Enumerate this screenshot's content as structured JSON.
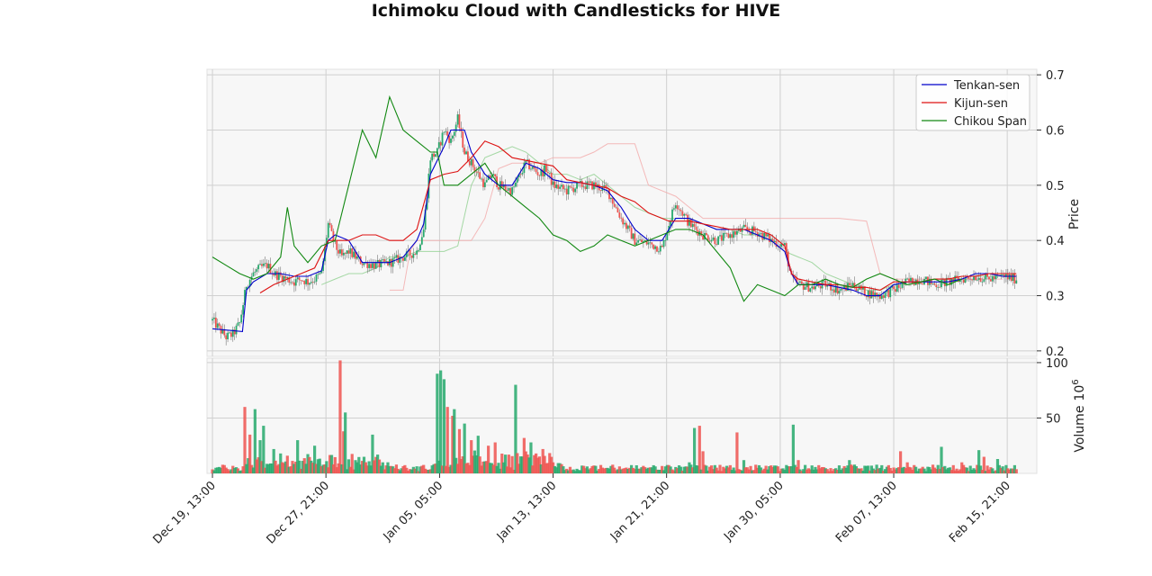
{
  "chart_data": {
    "type": "candlestick",
    "title": "Ichimoku Cloud with Candlesticks for HIVE",
    "price_axis": {
      "label": "Price",
      "ylim": [
        0.19,
        0.71
      ],
      "ticks": [
        "0.2",
        "0.3",
        "0.4",
        "0.5",
        "0.6",
        "0.7"
      ],
      "side": "right"
    },
    "volume_axis": {
      "label": "Volume",
      "multiplier_base": "10",
      "multiplier_exp": "6",
      "ylim": [
        0,
        104
      ],
      "ticks": [
        "50",
        "100"
      ],
      "side": "right"
    },
    "x_axis": {
      "range_days": [
        -0.4,
        60.5
      ],
      "ticks": [
        {
          "label": "Dec 19, 13:00",
          "day": 0
        },
        {
          "label": "Dec 27, 21:00",
          "day": 8.33
        },
        {
          "label": "Jan 05, 05:00",
          "day": 16.67
        },
        {
          "label": "Jan 13, 13:00",
          "day": 25
        },
        {
          "label": "Jan 21, 21:00",
          "day": 33.33
        },
        {
          "label": "Jan 30, 05:00",
          "day": 41.67
        },
        {
          "label": "Feb 07, 13:00",
          "day": 50
        },
        {
          "label": "Feb 15, 21:00",
          "day": 58.33
        }
      ]
    },
    "grid": true,
    "legend": {
      "placement": "top-right",
      "entries": [
        {
          "name": "Tenkan-sen",
          "color": "#0000cc"
        },
        {
          "name": "Kijun-sen",
          "color": "#dd1111"
        },
        {
          "name": "Chikou Span",
          "color": "#118811"
        }
      ]
    },
    "colors": {
      "up": "#26a96c",
      "down": "#ef5350",
      "tenkan": "#0000cc",
      "kijun": "#dd1111",
      "chikou": "#118811",
      "senkou_a": "#8fcf8f",
      "senkou_b": "#f2a9a9"
    },
    "price_path": [
      [
        0,
        0.255
      ],
      [
        0.5,
        0.24
      ],
      [
        1,
        0.225
      ],
      [
        1.5,
        0.23
      ],
      [
        2,
        0.25
      ],
      [
        2.5,
        0.32
      ],
      [
        3,
        0.34
      ],
      [
        3.5,
        0.35
      ],
      [
        4,
        0.355
      ],
      [
        4.5,
        0.34
      ],
      [
        5,
        0.335
      ],
      [
        5.5,
        0.33
      ],
      [
        6,
        0.325
      ],
      [
        6.5,
        0.33
      ],
      [
        7,
        0.325
      ],
      [
        7.5,
        0.33
      ],
      [
        8,
        0.34
      ],
      [
        8.5,
        0.43
      ],
      [
        9,
        0.39
      ],
      [
        9.5,
        0.37
      ],
      [
        10,
        0.38
      ],
      [
        11,
        0.36
      ],
      [
        12,
        0.355
      ],
      [
        13,
        0.36
      ],
      [
        14,
        0.37
      ],
      [
        15,
        0.38
      ],
      [
        15.5,
        0.42
      ],
      [
        16,
        0.55
      ],
      [
        16.5,
        0.56
      ],
      [
        17,
        0.6
      ],
      [
        17.5,
        0.58
      ],
      [
        18,
        0.62
      ],
      [
        18.5,
        0.56
      ],
      [
        19,
        0.54
      ],
      [
        20,
        0.5
      ],
      [
        20.5,
        0.52
      ],
      [
        21,
        0.5
      ],
      [
        22,
        0.49
      ],
      [
        23,
        0.54
      ],
      [
        24,
        0.52
      ],
      [
        24.5,
        0.53
      ],
      [
        25,
        0.5
      ],
      [
        26,
        0.49
      ],
      [
        27,
        0.5
      ],
      [
        28,
        0.5
      ],
      [
        29,
        0.49
      ],
      [
        30,
        0.44
      ],
      [
        31,
        0.4
      ],
      [
        32,
        0.395
      ],
      [
        33,
        0.385
      ],
      [
        33.5,
        0.43
      ],
      [
        34,
        0.47
      ],
      [
        34.5,
        0.45
      ],
      [
        35,
        0.43
      ],
      [
        36,
        0.41
      ],
      [
        37,
        0.4
      ],
      [
        38,
        0.41
      ],
      [
        39,
        0.42
      ],
      [
        40,
        0.415
      ],
      [
        41,
        0.4
      ],
      [
        42,
        0.39
      ],
      [
        42.5,
        0.33
      ],
      [
        43,
        0.32
      ],
      [
        44,
        0.315
      ],
      [
        45,
        0.32
      ],
      [
        46,
        0.31
      ],
      [
        47,
        0.32
      ],
      [
        48,
        0.305
      ],
      [
        49,
        0.3
      ],
      [
        50,
        0.31
      ],
      [
        51,
        0.325
      ],
      [
        52,
        0.33
      ],
      [
        53,
        0.32
      ],
      [
        54,
        0.325
      ],
      [
        55,
        0.33
      ],
      [
        56,
        0.335
      ],
      [
        57,
        0.33
      ],
      [
        58,
        0.335
      ],
      [
        59,
        0.33
      ]
    ],
    "tenkan": [
      [
        0,
        0.24
      ],
      [
        2.2,
        0.235
      ],
      [
        2.5,
        0.31
      ],
      [
        3,
        0.325
      ],
      [
        4,
        0.34
      ],
      [
        5,
        0.34
      ],
      [
        6,
        0.335
      ],
      [
        7,
        0.335
      ],
      [
        8,
        0.345
      ],
      [
        8.5,
        0.4
      ],
      [
        9,
        0.41
      ],
      [
        10,
        0.4
      ],
      [
        11,
        0.36
      ],
      [
        12,
        0.36
      ],
      [
        13,
        0.36
      ],
      [
        14,
        0.37
      ],
      [
        15,
        0.4
      ],
      [
        15.5,
        0.43
      ],
      [
        16,
        0.52
      ],
      [
        17,
        0.57
      ],
      [
        17.5,
        0.6
      ],
      [
        18.5,
        0.6
      ],
      [
        19,
        0.56
      ],
      [
        20,
        0.52
      ],
      [
        21,
        0.5
      ],
      [
        22,
        0.5
      ],
      [
        23,
        0.54
      ],
      [
        24,
        0.53
      ],
      [
        25,
        0.51
      ],
      [
        26,
        0.505
      ],
      [
        27,
        0.505
      ],
      [
        28,
        0.5
      ],
      [
        29,
        0.49
      ],
      [
        30,
        0.46
      ],
      [
        31,
        0.42
      ],
      [
        32,
        0.4
      ],
      [
        33,
        0.4
      ],
      [
        33.5,
        0.42
      ],
      [
        34,
        0.44
      ],
      [
        35,
        0.44
      ],
      [
        36,
        0.43
      ],
      [
        37,
        0.42
      ],
      [
        38,
        0.42
      ],
      [
        39,
        0.42
      ],
      [
        40,
        0.41
      ],
      [
        41,
        0.4
      ],
      [
        42,
        0.38
      ],
      [
        42.5,
        0.34
      ],
      [
        43,
        0.32
      ],
      [
        44,
        0.32
      ],
      [
        45,
        0.32
      ],
      [
        46,
        0.315
      ],
      [
        47,
        0.31
      ],
      [
        48,
        0.3
      ],
      [
        49,
        0.3
      ],
      [
        50,
        0.32
      ],
      [
        51,
        0.325
      ],
      [
        52,
        0.325
      ],
      [
        53,
        0.325
      ],
      [
        54,
        0.325
      ],
      [
        55,
        0.33
      ],
      [
        56,
        0.34
      ],
      [
        57,
        0.34
      ],
      [
        58,
        0.335
      ],
      [
        59,
        0.335
      ]
    ],
    "kijun": [
      [
        3.5,
        0.305
      ],
      [
        4.5,
        0.32
      ],
      [
        5.5,
        0.33
      ],
      [
        6.5,
        0.34
      ],
      [
        7.5,
        0.35
      ],
      [
        8.5,
        0.4
      ],
      [
        10,
        0.4
      ],
      [
        11,
        0.41
      ],
      [
        12,
        0.41
      ],
      [
        13,
        0.4
      ],
      [
        14,
        0.4
      ],
      [
        15,
        0.42
      ],
      [
        16,
        0.51
      ],
      [
        17,
        0.52
      ],
      [
        18,
        0.525
      ],
      [
        19,
        0.55
      ],
      [
        20,
        0.58
      ],
      [
        21,
        0.57
      ],
      [
        22,
        0.55
      ],
      [
        23,
        0.545
      ],
      [
        24,
        0.54
      ],
      [
        25,
        0.535
      ],
      [
        26,
        0.51
      ],
      [
        27,
        0.505
      ],
      [
        28,
        0.5
      ],
      [
        29,
        0.495
      ],
      [
        30,
        0.48
      ],
      [
        31,
        0.47
      ],
      [
        32,
        0.45
      ],
      [
        33,
        0.44
      ],
      [
        33.5,
        0.435
      ],
      [
        34,
        0.435
      ],
      [
        35,
        0.435
      ],
      [
        36,
        0.43
      ],
      [
        37,
        0.425
      ],
      [
        38,
        0.42
      ],
      [
        39,
        0.42
      ],
      [
        40,
        0.42
      ],
      [
        41,
        0.41
      ],
      [
        42,
        0.39
      ],
      [
        42.5,
        0.34
      ],
      [
        43,
        0.33
      ],
      [
        44,
        0.325
      ],
      [
        45,
        0.32
      ],
      [
        46,
        0.32
      ],
      [
        47,
        0.315
      ],
      [
        48,
        0.315
      ],
      [
        49,
        0.31
      ],
      [
        50,
        0.325
      ],
      [
        51,
        0.325
      ],
      [
        52,
        0.325
      ],
      [
        53,
        0.33
      ],
      [
        54,
        0.33
      ],
      [
        55,
        0.335
      ],
      [
        56,
        0.335
      ],
      [
        57,
        0.34
      ],
      [
        58,
        0.34
      ],
      [
        59,
        0.34
      ]
    ],
    "chikou": [
      [
        0,
        0.37
      ],
      [
        1,
        0.355
      ],
      [
        2,
        0.34
      ],
      [
        3,
        0.33
      ],
      [
        4,
        0.34
      ],
      [
        5,
        0.37
      ],
      [
        5.5,
        0.46
      ],
      [
        6,
        0.39
      ],
      [
        7,
        0.36
      ],
      [
        8,
        0.39
      ],
      [
        9,
        0.4
      ],
      [
        10,
        0.5
      ],
      [
        11,
        0.6
      ],
      [
        12,
        0.55
      ],
      [
        13,
        0.66
      ],
      [
        14,
        0.6
      ],
      [
        15,
        0.58
      ],
      [
        16,
        0.56
      ],
      [
        16.5,
        0.56
      ],
      [
        17,
        0.5
      ],
      [
        18,
        0.5
      ],
      [
        19,
        0.52
      ],
      [
        20,
        0.54
      ],
      [
        21,
        0.5
      ],
      [
        22,
        0.48
      ],
      [
        23,
        0.46
      ],
      [
        24,
        0.44
      ],
      [
        25,
        0.41
      ],
      [
        26,
        0.4
      ],
      [
        27,
        0.38
      ],
      [
        28,
        0.39
      ],
      [
        29,
        0.41
      ],
      [
        30,
        0.4
      ],
      [
        31,
        0.39
      ],
      [
        32,
        0.4
      ],
      [
        33,
        0.41
      ],
      [
        34,
        0.42
      ],
      [
        35,
        0.42
      ],
      [
        36,
        0.41
      ],
      [
        37,
        0.38
      ],
      [
        38,
        0.35
      ],
      [
        39,
        0.29
      ],
      [
        40,
        0.32
      ],
      [
        41,
        0.31
      ],
      [
        42,
        0.3
      ],
      [
        43,
        0.32
      ],
      [
        44,
        0.32
      ],
      [
        45,
        0.33
      ],
      [
        46,
        0.32
      ],
      [
        47,
        0.315
      ],
      [
        48,
        0.33
      ],
      [
        49,
        0.34
      ],
      [
        50,
        0.33
      ],
      [
        51,
        0.32
      ],
      [
        52,
        0.325
      ],
      [
        53,
        0.33
      ],
      [
        54,
        0.32
      ],
      [
        55,
        0.33
      ]
    ],
    "senkou_a": [
      [
        8,
        0.32
      ],
      [
        9,
        0.33
      ],
      [
        10,
        0.34
      ],
      [
        11,
        0.34
      ],
      [
        12,
        0.35
      ],
      [
        13,
        0.37
      ],
      [
        14,
        0.37
      ],
      [
        15,
        0.38
      ],
      [
        16,
        0.38
      ],
      [
        17,
        0.38
      ],
      [
        18,
        0.39
      ],
      [
        19,
        0.5
      ],
      [
        20,
        0.55
      ],
      [
        21,
        0.56
      ],
      [
        22,
        0.57
      ],
      [
        23,
        0.56
      ],
      [
        24,
        0.54
      ],
      [
        25,
        0.52
      ],
      [
        26,
        0.52
      ],
      [
        27,
        0.51
      ],
      [
        28,
        0.52
      ],
      [
        29,
        0.5
      ],
      [
        30,
        0.48
      ],
      [
        31,
        0.46
      ],
      [
        32,
        0.45
      ],
      [
        33,
        0.44
      ],
      [
        34,
        0.44
      ],
      [
        35,
        0.44
      ],
      [
        36,
        0.43
      ],
      [
        37,
        0.42
      ],
      [
        38,
        0.42
      ],
      [
        39,
        0.41
      ],
      [
        40,
        0.41
      ],
      [
        41,
        0.4
      ],
      [
        42,
        0.38
      ],
      [
        43,
        0.37
      ],
      [
        44,
        0.36
      ],
      [
        45,
        0.34
      ],
      [
        46,
        0.33
      ],
      [
        47,
        0.32
      ],
      [
        48,
        0.31
      ],
      [
        49,
        0.31
      ],
      [
        50,
        0.32
      ],
      [
        51,
        0.32
      ],
      [
        52,
        0.325
      ],
      [
        53,
        0.33
      ],
      [
        54,
        0.33
      ],
      [
        55,
        0.335
      ],
      [
        56,
        0.335
      ],
      [
        57,
        0.335
      ],
      [
        58,
        0.335
      ]
    ],
    "senkou_b": [
      [
        13,
        0.31
      ],
      [
        14,
        0.31
      ],
      [
        14.5,
        0.38
      ],
      [
        15,
        0.4
      ],
      [
        16,
        0.4
      ],
      [
        17,
        0.4
      ],
      [
        18,
        0.4
      ],
      [
        19,
        0.4
      ],
      [
        20,
        0.44
      ],
      [
        21,
        0.53
      ],
      [
        22,
        0.54
      ],
      [
        23,
        0.54
      ],
      [
        24,
        0.54
      ],
      [
        25,
        0.55
      ],
      [
        27,
        0.55
      ],
      [
        28,
        0.56
      ],
      [
        29,
        0.575
      ],
      [
        31,
        0.575
      ],
      [
        32,
        0.5
      ],
      [
        34,
        0.48
      ],
      [
        35,
        0.46
      ],
      [
        36,
        0.44
      ],
      [
        40,
        0.44
      ],
      [
        42,
        0.44
      ],
      [
        44,
        0.44
      ],
      [
        46,
        0.44
      ],
      [
        48,
        0.435
      ],
      [
        49,
        0.34
      ],
      [
        50,
        0.33
      ],
      [
        52,
        0.33
      ],
      [
        54,
        0.33
      ],
      [
        56,
        0.33
      ],
      [
        58,
        0.33
      ]
    ],
    "volume_spikes": [
      [
        2.4,
        60
      ],
      [
        2.8,
        35
      ],
      [
        3.1,
        58
      ],
      [
        3.5,
        30
      ],
      [
        3.8,
        43
      ],
      [
        4.5,
        22
      ],
      [
        5.0,
        18
      ],
      [
        6.3,
        30
      ],
      [
        7.5,
        25
      ],
      [
        9.4,
        102
      ],
      [
        9.6,
        38
      ],
      [
        9.8,
        55
      ],
      [
        10.5,
        12
      ],
      [
        11.1,
        15
      ],
      [
        11.8,
        35
      ],
      [
        12.5,
        10
      ],
      [
        16.5,
        90
      ],
      [
        16.8,
        93
      ],
      [
        17.0,
        85
      ],
      [
        17.3,
        60
      ],
      [
        17.6,
        52
      ],
      [
        17.8,
        58
      ],
      [
        18.1,
        40
      ],
      [
        18.5,
        45
      ],
      [
        19.0,
        30
      ],
      [
        19.5,
        34
      ],
      [
        20.2,
        25
      ],
      [
        20.8,
        28
      ],
      [
        22.3,
        80
      ],
      [
        22.9,
        32
      ],
      [
        23.4,
        28
      ],
      [
        23.8,
        18
      ],
      [
        24.3,
        22
      ],
      [
        25.0,
        10
      ],
      [
        35.0,
        10
      ],
      [
        35.4,
        41
      ],
      [
        35.7,
        43
      ],
      [
        36.0,
        20
      ],
      [
        38.5,
        37
      ],
      [
        39.0,
        12
      ],
      [
        42.6,
        44
      ],
      [
        43.0,
        12
      ],
      [
        46.8,
        12
      ],
      [
        50.5,
        20
      ],
      [
        51.0,
        10
      ],
      [
        53.5,
        24
      ],
      [
        55.0,
        10
      ],
      [
        56.2,
        21
      ],
      [
        56.6,
        15
      ],
      [
        57.6,
        13
      ]
    ]
  }
}
